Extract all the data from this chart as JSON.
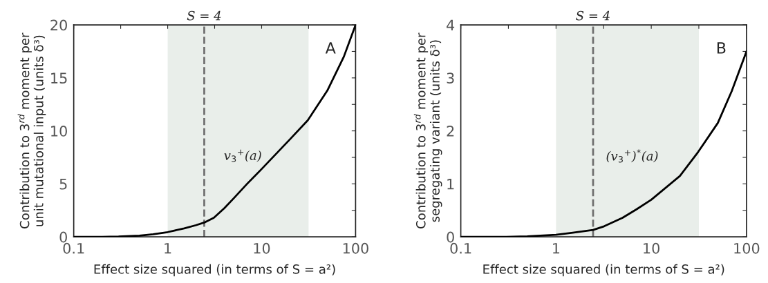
{
  "chart_data": [
    {
      "type": "line",
      "xlabel": "Effect size squared (in terms of S = a²)",
      "ylabel": "Contribution to 3$^{rd}$ moment per\nunit mutational input (units δ³)",
      "log": "x",
      "xlim": [
        0.1,
        100
      ],
      "ylim": [
        0,
        20
      ],
      "xticks": [
        0.1,
        {
          "value": 0.316,
          "label": null
        },
        1,
        {
          "value": 3.16,
          "label": null
        },
        10,
        {
          "value": 31.6,
          "label": null
        },
        100
      ],
      "yticks": [
        0,
        {
          "value": 2.5,
          "label": null
        },
        5,
        {
          "value": 7.5,
          "label": null
        },
        10,
        {
          "value": 12.5,
          "label": null
        },
        15,
        {
          "value": 17.5,
          "label": null
        },
        20
      ],
      "x": [
        0.1,
        0.2,
        0.3,
        0.5,
        0.7,
        1,
        1.5,
        2,
        2.45,
        3.1,
        4,
        5,
        7,
        10,
        20,
        31,
        50,
        75,
        100
      ],
      "series": [
        {
          "color": "#000000",
          "values": [
            0,
            0.01,
            0.03,
            0.12,
            0.25,
            0.45,
            0.8,
            1.1,
            1.35,
            1.8,
            2.7,
            3.6,
            5.0,
            6.4,
            9.2,
            11.0,
            13.8,
            17.0,
            20
          ]
        }
      ],
      "ref_lines": [
        {
          "axis": "x",
          "value": 2.45,
          "color": "#707070",
          "line_style": "dashed"
        }
      ],
      "bands": [
        {
          "axis": "x",
          "from": 1,
          "to": 31.6,
          "color": "#e9eeea"
        }
      ],
      "annotations": [
        "A",
        "v$_{3}$$^{+}$(a)",
        "S = 4"
      ]
    },
    {
      "type": "line",
      "xlabel": "Effect size squared (in terms of S = a²)",
      "ylabel": "Contribution to 3$^{rd}$ moment per\nsegregating variant (units δ³)",
      "log": "x",
      "xlim": [
        0.1,
        100
      ],
      "ylim": [
        0,
        4
      ],
      "xticks": [
        0.1,
        {
          "value": 0.316,
          "label": null
        },
        1,
        {
          "value": 3.16,
          "label": null
        },
        10,
        {
          "value": 31.6,
          "label": null
        },
        100
      ],
      "yticks": [
        0,
        {
          "value": 0.5,
          "label": null
        },
        1,
        {
          "value": 1.5,
          "label": null
        },
        2,
        {
          "value": 2.5,
          "label": null
        },
        3,
        {
          "value": 3.5,
          "label": null
        },
        4
      ],
      "x": [
        0.1,
        0.3,
        0.5,
        1,
        1.5,
        2.45,
        3.2,
        5,
        7,
        10,
        20,
        31,
        50,
        70,
        100
      ],
      "series": [
        {
          "color": "#000000",
          "values": [
            0,
            0.0,
            0.01,
            0.04,
            0.08,
            0.13,
            0.2,
            0.36,
            0.52,
            0.7,
            1.15,
            1.6,
            2.15,
            2.75,
            3.5
          ]
        }
      ],
      "ref_lines": [
        {
          "axis": "x",
          "value": 2.45,
          "color": "#707070",
          "line_style": "dashed"
        }
      ],
      "bands": [
        {
          "axis": "x",
          "from": 1,
          "to": 31.6,
          "color": "#e9eeea"
        }
      ],
      "annotations": [
        "B",
        "(v$_{3}$$^{+}$)$^{*}$(a)",
        "S = 4"
      ]
    }
  ]
}
